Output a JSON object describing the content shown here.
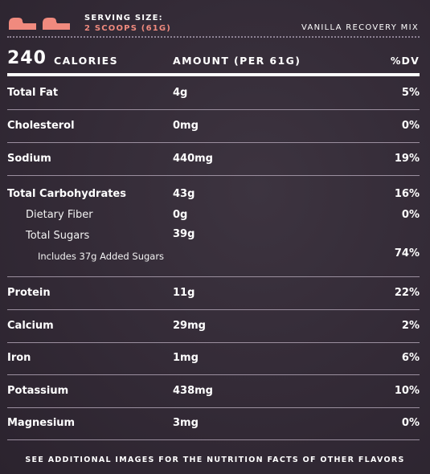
{
  "header": {
    "serving_label": "SERVING SIZE:",
    "serving_value": "2 SCOOPS (61G)",
    "product_name": "VANILLA RECOVERY MIX",
    "scoop_icon_color": "#f08a7e"
  },
  "summary": {
    "calories": "240",
    "calories_label": "CALORIES",
    "amount_header": "AMOUNT (PER 61G)",
    "dv_header": "%DV"
  },
  "nutrients": [
    {
      "name": "Total Fat",
      "amount": "4g",
      "dv": "5%"
    },
    {
      "name": "Cholesterol",
      "amount": "0mg",
      "dv": "0%"
    },
    {
      "name": "Sodium",
      "amount": "440mg",
      "dv": "19%"
    },
    {
      "name": "Total Carbohydrates",
      "amount": "43g",
      "dv": "16%"
    },
    {
      "name": "Dietary Fiber",
      "amount": "0g",
      "dv": "0%"
    },
    {
      "name": "Total Sugars",
      "amount": "39g",
      "dv": ""
    },
    {
      "name": "Includes 37g Added Sugars",
      "amount": "",
      "dv": "74%"
    },
    {
      "name": "Protein",
      "amount": "11g",
      "dv": "22%"
    },
    {
      "name": "Calcium",
      "amount": "29mg",
      "dv": "2%"
    },
    {
      "name": "Iron",
      "amount": "1mg",
      "dv": "6%"
    },
    {
      "name": "Potassium",
      "amount": "438mg",
      "dv": "10%"
    },
    {
      "name": "Magnesium",
      "amount": "3mg",
      "dv": "0%"
    }
  ],
  "footer": {
    "note": "SEE ADDITIONAL IMAGES FOR THE NUTRITION FACTS OF OTHER FLAVORS"
  }
}
